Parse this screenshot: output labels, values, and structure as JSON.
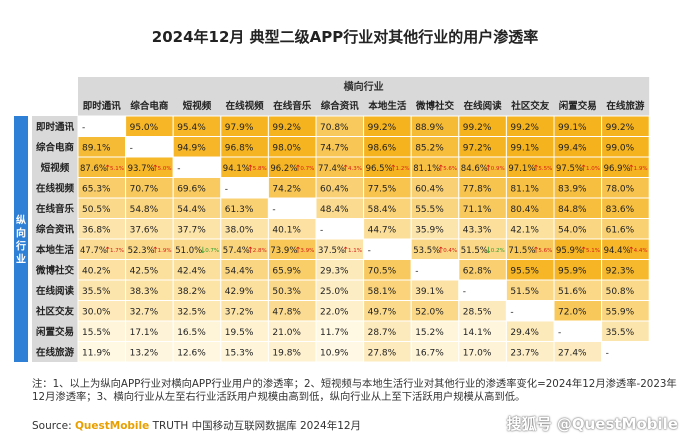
{
  "title": "2024年12月 典型二级APP行业对其他行业的用户渗透率",
  "notes": "注：1、以上为纵向APP行业对横向APP行业用户的渗透率；2、短视频与本地生活行业对其他行业的渗透率变化=2024年12月渗透率-2023年12月渗透率；3、横向行业从左至右行业活跃用户规模由高到低，纵向行业从上至下活跃用户规模从高到低。",
  "source_label": "Source:",
  "source_brand": "QuestMobile",
  "source_text": "TRUTH 中国移动互联网数据库 2024年12月",
  "watermark": "搜狐号 @QuestMobile",
  "colors": {
    "header": "#d9d9d9",
    "vertical_bar": "#2e7fd6",
    "up": "#d91e18",
    "down": "#2e9e2e",
    "high": "#f5b21b",
    "low": "#fff9e6"
  },
  "chart_data": {
    "type": "heatmap",
    "column_group_label": "横向行业",
    "row_group_label": "纵向行业",
    "columns": [
      "即时通讯",
      "综合电商",
      "短视频",
      "在线视频",
      "在线音乐",
      "综合资讯",
      "本地生活",
      "微博社交",
      "在线阅读",
      "社区交友",
      "闲置交易",
      "在线旅游"
    ],
    "rows": [
      "即时通讯",
      "综合电商",
      "短视频",
      "在线视频",
      "在线音乐",
      "综合资讯",
      "本地生活",
      "微博社交",
      "在线阅读",
      "社区交友",
      "闲置交易",
      "在线旅游"
    ],
    "values": [
      [
        "-",
        "95.0%",
        "95.4%",
        "97.9%",
        "99.2%",
        "70.8%",
        "99.2%",
        "88.9%",
        "99.2%",
        "99.2%",
        "99.1%",
        "99.2%"
      ],
      [
        "89.1%",
        "-",
        "94.9%",
        "96.8%",
        "98.0%",
        "74.7%",
        "98.6%",
        "85.2%",
        "97.2%",
        "99.1%",
        "99.4%",
        "99.0%"
      ],
      [
        "87.6%",
        "93.7%",
        "-",
        "94.1%",
        "96.2%",
        "77.4%",
        "96.5%",
        "81.1%",
        "84.6%",
        "97.1%",
        "97.5%",
        "96.9%"
      ],
      [
        "65.3%",
        "70.7%",
        "69.6%",
        "-",
        "74.2%",
        "60.4%",
        "77.5%",
        "60.4%",
        "77.8%",
        "81.1%",
        "83.9%",
        "78.0%"
      ],
      [
        "50.5%",
        "54.8%",
        "54.4%",
        "61.3%",
        "-",
        "48.4%",
        "58.4%",
        "55.5%",
        "71.1%",
        "80.4%",
        "84.8%",
        "83.6%"
      ],
      [
        "36.8%",
        "37.6%",
        "37.7%",
        "38.0%",
        "40.1%",
        "-",
        "44.7%",
        "35.9%",
        "43.3%",
        "42.1%",
        "54.0%",
        "61.6%"
      ],
      [
        "47.7%",
        "52.3%",
        "51.0%",
        "57.4%",
        "73.9%",
        "37.5%",
        "-",
        "53.5%",
        "51.5%",
        "71.5%",
        "95.9%",
        "94.4%"
      ],
      [
        "40.2%",
        "42.5%",
        "42.4%",
        "54.4%",
        "65.9%",
        "29.3%",
        "70.5%",
        "-",
        "62.8%",
        "95.5%",
        "95.9%",
        "92.3%"
      ],
      [
        "35.5%",
        "38.3%",
        "38.2%",
        "42.9%",
        "50.3%",
        "25.0%",
        "58.1%",
        "39.1%",
        "-",
        "51.5%",
        "51.6%",
        "50.8%"
      ],
      [
        "30.0%",
        "32.7%",
        "32.5%",
        "37.2%",
        "47.8%",
        "22.0%",
        "49.7%",
        "52.0%",
        "28.5%",
        "-",
        "72.0%",
        "55.9%"
      ],
      [
        "15.5%",
        "17.1%",
        "16.5%",
        "19.5%",
        "21.0%",
        "11.7%",
        "28.7%",
        "15.2%",
        "14.1%",
        "29.4%",
        "-",
        "35.5%"
      ],
      [
        "11.9%",
        "13.2%",
        "12.6%",
        "15.3%",
        "19.8%",
        "10.9%",
        "27.8%",
        "16.7%",
        "17.0%",
        "23.7%",
        "27.4%",
        "-"
      ]
    ],
    "changes": {
      "短视频": [
        "5.1%",
        "5.0%",
        "",
        "5.8%",
        "0.7%",
        "4.3%",
        "1.2%",
        "5.6%",
        "0.9%",
        "5.5%",
        "1.0%",
        "1.9%"
      ],
      "本地生活": [
        "1.7%",
        "1.9%",
        "0.7%",
        "2.8%",
        "3.9%",
        "1.1%",
        "",
        "0.4%",
        "0.2%",
        "5.6%",
        "5.1%",
        "4.4%"
      ]
    },
    "change_directions": {
      "短视频": [
        "up",
        "up",
        "",
        "up",
        "up",
        "up",
        "up",
        "up",
        "up",
        "up",
        "up",
        "up"
      ],
      "本地生活": [
        "up",
        "up",
        "down",
        "up",
        "up",
        "up",
        "",
        "up",
        "down",
        "up",
        "up",
        "up"
      ]
    }
  }
}
